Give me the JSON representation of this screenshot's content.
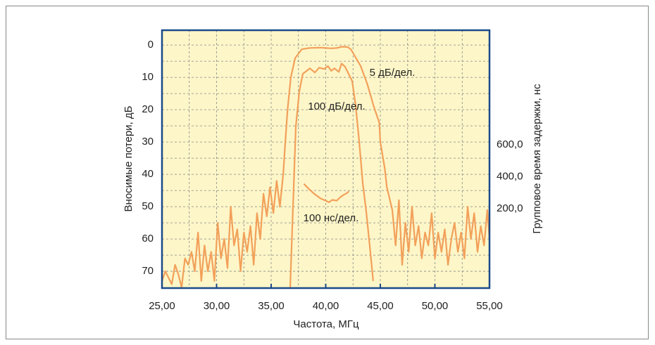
{
  "chart_data": {
    "type": "line",
    "xlabel": "Частота, МГц",
    "ylabel": "Вносимые потери, дБ",
    "y2label": "Групповое время задержки, нс",
    "xlim": [
      25,
      55
    ],
    "xticks": [
      {
        "value": 25,
        "label": "25,00"
      },
      {
        "value": 30,
        "label": "30,00"
      },
      {
        "value": 35,
        "label": "35,00"
      },
      {
        "value": 40,
        "label": "40,00"
      },
      {
        "value": 45,
        "label": "45,00"
      },
      {
        "value": 50,
        "label": "50,00"
      },
      {
        "value": 55,
        "label": "55,00"
      }
    ],
    "ylim": [
      75.2,
      -4.6
    ],
    "yticks": [
      0,
      10,
      20,
      30,
      40,
      50,
      60,
      70
    ],
    "y2lim": [
      -297,
      1317
    ],
    "y2ticks": [
      {
        "value": 200,
        "label": "200,0"
      },
      {
        "value": 400,
        "label": "400,0"
      },
      {
        "value": 600,
        "label": "600,0"
      }
    ],
    "xgrid": [
      27.5,
      30,
      32.5,
      35,
      37.5,
      40,
      42.5,
      45,
      47.5,
      50,
      52.5
    ],
    "ygrid": [
      0,
      5,
      10,
      15,
      20,
      25,
      30,
      35,
      40,
      45,
      50,
      55,
      60,
      65,
      70
    ],
    "grid": true,
    "background": "#fdf6c8",
    "frame_color": "#1a4a8a",
    "series": [
      {
        "name": "5 дБ/дел.",
        "color": "#f2a05a",
        "x": [
          25.0,
          25.3,
          25.6,
          25.9,
          26.2,
          26.5,
          26.8,
          27.1,
          27.4,
          27.7,
          28.0,
          28.3,
          28.6,
          28.9,
          29.2,
          29.5,
          29.8,
          30.1,
          30.4,
          30.7,
          31.0,
          31.3,
          31.6,
          31.9,
          32.2,
          32.5,
          32.8,
          33.1,
          33.4,
          33.7,
          34.0,
          34.3,
          34.6,
          34.9,
          35.2,
          35.5,
          35.8,
          36.1,
          36.3,
          36.5,
          36.8,
          37.2,
          37.8,
          38.5,
          39.5,
          40.5,
          41.0,
          41.5,
          42.0,
          42.3,
          42.6,
          43.2,
          43.8,
          44.4,
          44.9,
          45.0,
          45.4,
          45.6,
          46.1,
          46.4,
          46.7,
          47.0,
          47.3,
          47.6,
          47.9,
          48.2,
          48.5,
          48.8,
          49.1,
          49.4,
          49.7,
          50.0,
          50.3,
          50.6,
          50.9,
          51.2,
          51.5,
          51.8,
          52.1,
          52.4,
          52.7,
          53.0,
          53.3,
          53.6,
          53.9,
          54.2,
          54.5,
          54.8,
          55.0
        ],
        "values": [
          73,
          70,
          72,
          74,
          68,
          71,
          75,
          66,
          68,
          64,
          70,
          58,
          73,
          62,
          70,
          64,
          73,
          55,
          66,
          60,
          69,
          50,
          62,
          57,
          70,
          58,
          64,
          56,
          68,
          52,
          60,
          46,
          53,
          44,
          52,
          42,
          50,
          40,
          30,
          20,
          10,
          4,
          1.3,
          0.9,
          0.8,
          1,
          0.9,
          0.5,
          0.6,
          1.3,
          3,
          6.5,
          12,
          19,
          24,
          30,
          38,
          44,
          51,
          62,
          48,
          68,
          55,
          64,
          50,
          62,
          56,
          66,
          58,
          62,
          52,
          66,
          58,
          64,
          57,
          68,
          60,
          55,
          64,
          58,
          66,
          50,
          60,
          52,
          64,
          56,
          62,
          51,
          60
        ]
      },
      {
        "name": "100 дБ/дел.",
        "color": "#f2a05a",
        "x": [
          36.74,
          37.26,
          37.58,
          37.9,
          38.55,
          39.0,
          39.4,
          39.84,
          40.2,
          40.5,
          40.8,
          41.2,
          41.45,
          41.77,
          42.42,
          42.74,
          43.06,
          43.39,
          43.7,
          44.03,
          44.35
        ],
        "values": [
          75.2,
          25.2,
          14.3,
          8.9,
          7.2,
          8.5,
          7,
          7.4,
          6.5,
          8,
          7.2,
          8.3,
          5.7,
          6.7,
          11.1,
          18.7,
          29.6,
          42.6,
          51.3,
          62.2,
          73
        ]
      },
      {
        "name": "100 нс/дел.",
        "color": "#f2a05a",
        "axis": "y2",
        "x": [
          38.0,
          38.5,
          39.0,
          39.5,
          40.0,
          40.3,
          40.6,
          41.0,
          41.3,
          41.6,
          42.0,
          42.1
        ],
        "values": [
          355,
          320,
          290,
          265,
          250,
          240,
          255,
          250,
          270,
          285,
          300,
          310
        ]
      }
    ]
  }
}
